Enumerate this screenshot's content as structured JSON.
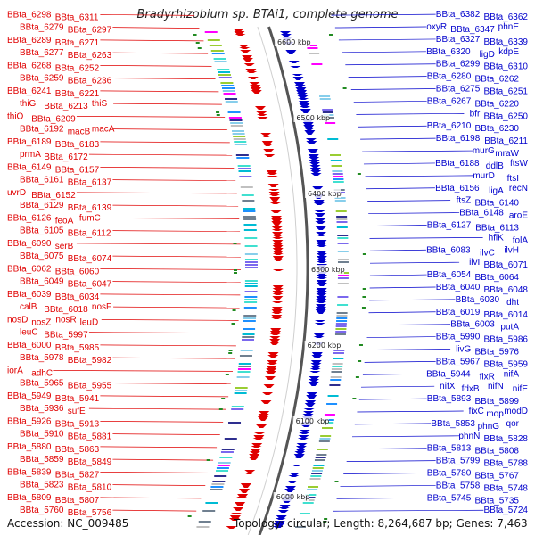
{
  "title": "Bradyrhizobium sp. BTAi1, complete genome",
  "accession": "Accession: NC_009485",
  "topology": "Topology: circular; Length: 8,264,687 bp; Genes: 7,463",
  "colors": {
    "forward": "#e00000",
    "reverse": "#0000cc",
    "ring": "#555555",
    "tick": "#228b22"
  },
  "ticks": [
    "6600 kbp",
    "6500 kbp",
    "6400 kbp",
    "6300 kbp",
    "6200 kbp",
    "6100 kbp",
    "6000 kbp"
  ],
  "left_labels": [
    "BBta_6298",
    "BBta_6311",
    "BBta_6279",
    "BBta_6297",
    "BBta_6289",
    "BBta_6271",
    "BBta_6277",
    "BBta_6263",
    "BBta_6268",
    "BBta_6252",
    "BBta_6259",
    "BBta_6236",
    "BBta_6241",
    "BBta_6221",
    "thiG",
    "BBta_6213",
    "thiS",
    "thiO",
    "BBta_6209",
    "BBta_6192",
    "macB",
    "macA",
    "BBta_6189",
    "BBta_6183",
    "prmA",
    "BBta_6172",
    "BBta_6149",
    "BBta_6157",
    "BBta_6161",
    "BBta_6137",
    "uvrD",
    "BBta_6152",
    "BBta_6129",
    "BBta_6139",
    "BBta_6126",
    "feoA",
    "fumC",
    "BBta_6105",
    "BBta_6112",
    "BBta_6090",
    "serB",
    "BBta_6075",
    "BBta_6074",
    "BBta_6062",
    "BBta_6060",
    "BBta_6049",
    "BBta_6047",
    "BBta_6039",
    "BBta_6034",
    "calB",
    "BBta_6018",
    "nosF",
    "nosD",
    "nosZ",
    "nosR",
    "leuD",
    "leuC",
    "BBta_5997",
    "BBta_6000",
    "BBta_5985",
    "BBta_5978",
    "BBta_5982",
    "iorA",
    "adhC",
    "BBta_5965",
    "BBta_5955",
    "BBta_5949",
    "BBta_5941",
    "BBta_5936",
    "sufE",
    "BBta_5926",
    "BBta_5913",
    "BBta_5910",
    "BBta_5881",
    "BBta_5880",
    "BBta_5863",
    "BBta_5859",
    "BBta_5849",
    "BBta_5839",
    "BBta_5827",
    "BBta_5823",
    "BBta_5810",
    "BBta_5809",
    "BBta_5807",
    "BBta_5760",
    "BBta_5756"
  ],
  "right_labels": [
    "BBta_6382",
    "BBta_6362",
    "oxyR",
    "BBta_6347",
    "phnE",
    "BBta_6327",
    "BBta_6339",
    "BBta_6320",
    "ligD",
    "kdpE",
    "BBta_6299",
    "BBta_6310",
    "BBta_6280",
    "BBta_6262",
    "BBta_6275",
    "BBta_6251",
    "BBta_6267",
    "BBta_6220",
    "bfr",
    "BBta_6250",
    "BBta_6210",
    "BBta_6230",
    "BBta_6198",
    "BBta_6211",
    "murG",
    "mraW",
    "BBta_6188",
    "ddlB",
    "ftsW",
    "murD",
    "ftsI",
    "BBta_6156",
    "ligA",
    "recN",
    "ftsZ",
    "BBta_6140",
    "BBta_6148",
    "aroE",
    "BBta_6127",
    "BBta_6113",
    "hflK",
    "folA",
    "BBta_6083",
    "ilvC",
    "ilvH",
    "ilvI",
    "BBta_6071",
    "BBta_6054",
    "BBta_6064",
    "BBta_6040",
    "BBta_6048",
    "BBta_6030",
    "dht",
    "BBta_6019",
    "BBta_6014",
    "BBta_6003",
    "putA",
    "BBta_5990",
    "BBta_5986",
    "livG",
    "BBta_5976",
    "BBta_5967",
    "BBta_5959",
    "BBta_5944",
    "fixR",
    "nifA",
    "nifX",
    "fdxB",
    "nifN",
    "nifE",
    "BBta_5893",
    "BBta_5899",
    "fixC",
    "mop",
    "modD",
    "BBta_5853",
    "phnG",
    "qor",
    "phnN",
    "BBta_5828",
    "BBta_5813",
    "BBta_5808",
    "BBta_5799",
    "BBta_5788",
    "BBta_5780",
    "BBta_5767",
    "BBta_5758",
    "BBta_5748",
    "BBta_5745",
    "BBta_5735",
    "BBta_5724"
  ]
}
